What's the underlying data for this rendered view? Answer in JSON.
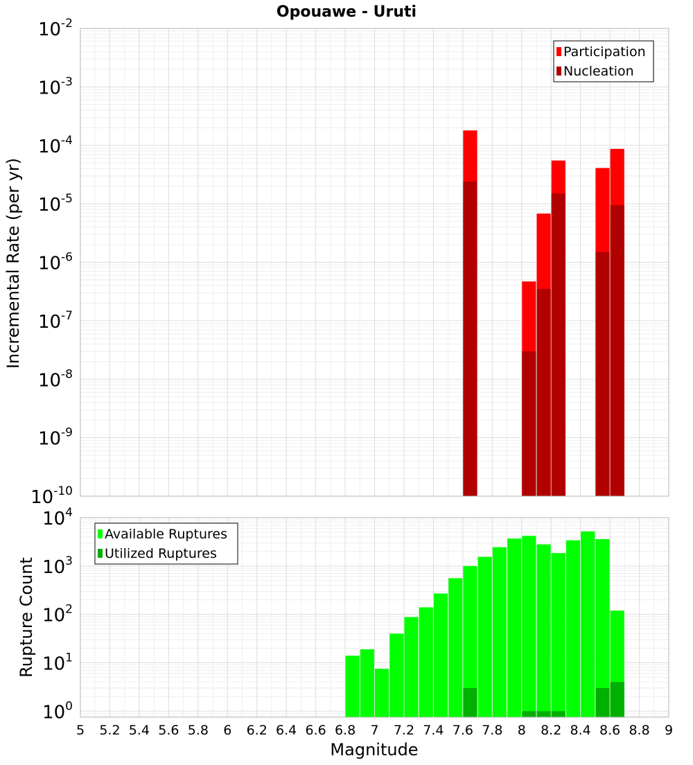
{
  "title": "Opouawe - Uruti",
  "chart_data": [
    {
      "type": "bar",
      "scale": "log",
      "ylabel": "Incremental Rate (per yr)",
      "xlabel": "",
      "xlim": [
        5,
        9
      ],
      "ylim": [
        1e-10,
        0.01
      ],
      "ytick_exponents": [
        -10,
        -9,
        -8,
        -7,
        -6,
        -5,
        -4,
        -3,
        -2
      ],
      "legend_position": "top-right",
      "bar_width": 0.095,
      "grid": true,
      "series": [
        {
          "name": "Participation",
          "color": "#ff0000",
          "points": [
            {
              "x": 7.65,
              "y": 0.00018
            },
            {
              "x": 8.05,
              "y": 4.7e-07
            },
            {
              "x": 8.15,
              "y": 6.8e-06
            },
            {
              "x": 8.25,
              "y": 5.5e-05
            },
            {
              "x": 8.55,
              "y": 4.1e-05
            },
            {
              "x": 8.65,
              "y": 8.7e-05
            }
          ]
        },
        {
          "name": "Nucleation",
          "color": "#b00000",
          "points": [
            {
              "x": 7.65,
              "y": 2.4e-05
            },
            {
              "x": 8.05,
              "y": 3e-08
            },
            {
              "x": 8.15,
              "y": 3.5e-07
            },
            {
              "x": 8.25,
              "y": 1.5e-05
            },
            {
              "x": 8.55,
              "y": 1.5e-06
            },
            {
              "x": 8.65,
              "y": 9.5e-06
            }
          ]
        }
      ]
    },
    {
      "type": "bar",
      "scale": "log",
      "ylabel": "Rupture Count",
      "xlabel": "Magnitude",
      "xlim": [
        5,
        9
      ],
      "ylim": [
        0.75,
        10000
      ],
      "ytick_exponents": [
        0,
        1,
        2,
        3,
        4
      ],
      "xticks": [
        "5",
        "5.2",
        "5.4",
        "5.6",
        "5.8",
        "6",
        "6.2",
        "6.4",
        "6.6",
        "6.8",
        "7",
        "7.2",
        "7.4",
        "7.6",
        "7.8",
        "8",
        "8.2",
        "8.4",
        "8.6",
        "8.8",
        "9"
      ],
      "legend_position": "top-left",
      "bar_width": 0.095,
      "grid": true,
      "series": [
        {
          "name": "Available Ruptures",
          "color": "#00ff00",
          "points": [
            {
              "x": 6.85,
              "y": 14
            },
            {
              "x": 6.95,
              "y": 19
            },
            {
              "x": 7.05,
              "y": 7.5
            },
            {
              "x": 7.15,
              "y": 40
            },
            {
              "x": 7.25,
              "y": 88
            },
            {
              "x": 7.35,
              "y": 140
            },
            {
              "x": 7.45,
              "y": 270
            },
            {
              "x": 7.55,
              "y": 560
            },
            {
              "x": 7.65,
              "y": 1000
            },
            {
              "x": 7.75,
              "y": 1550
            },
            {
              "x": 7.85,
              "y": 2450
            },
            {
              "x": 7.95,
              "y": 3700
            },
            {
              "x": 8.05,
              "y": 4200
            },
            {
              "x": 8.15,
              "y": 2800
            },
            {
              "x": 8.25,
              "y": 1850
            },
            {
              "x": 8.35,
              "y": 3400
            },
            {
              "x": 8.45,
              "y": 5200
            },
            {
              "x": 8.55,
              "y": 3600
            },
            {
              "x": 8.65,
              "y": 120
            }
          ]
        },
        {
          "name": "Utilized Ruptures",
          "color": "#00b000",
          "points": [
            {
              "x": 7.65,
              "y": 3
            },
            {
              "x": 8.05,
              "y": 1
            },
            {
              "x": 8.15,
              "y": 1
            },
            {
              "x": 8.25,
              "y": 1
            },
            {
              "x": 8.55,
              "y": 3
            },
            {
              "x": 8.65,
              "y": 4
            }
          ]
        }
      ]
    }
  ]
}
